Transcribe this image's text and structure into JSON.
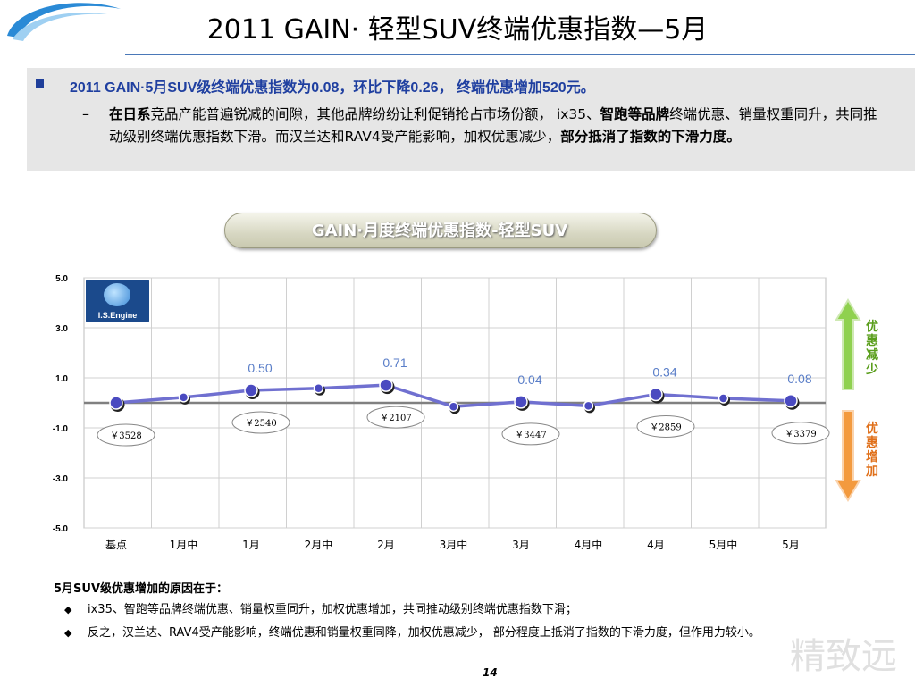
{
  "header": {
    "title": "2011 GAIN· 轻型SUV终端优惠指数—5月"
  },
  "summary": {
    "headline": "2011 GAIN·5月SUV级终端优惠指数为0.08，环比下降0.26， 终端优惠增加520元。",
    "detail_bold_1": "在日系",
    "detail_1": "竞品产能普遍锐减的间隙，其他品牌纷纷让利促销抢占市场份额， ix35、",
    "detail_bold_2": "智跑等品牌",
    "detail_2": "终端优惠、销量权重同升，共同推动级别终端优惠指数下滑。而汉兰达和RAV4受产能影响，加权优惠减少，",
    "detail_bold_3": "部分抵消了指数的下滑力度。"
  },
  "chart_title": "GAIN·月度终端优惠指数-轻型SUV",
  "logo_label": "I.S.Engine",
  "side_labels": {
    "up": [
      "优",
      "惠",
      "减",
      "少"
    ],
    "down": [
      "优",
      "惠",
      "增",
      "加"
    ]
  },
  "colors": {
    "line": "#7070d0",
    "marker": "#4a4ac0",
    "value_label": "#5a7ec8",
    "up_arrow": "#7cc242",
    "down_arrow": "#f08a2a",
    "up_text": "#5a9e1c",
    "down_text": "#e0701a"
  },
  "chart_data": {
    "type": "line",
    "categories": [
      "基点",
      "1月中",
      "1月",
      "2月中",
      "2月",
      "3月中",
      "3月",
      "4月中",
      "4月",
      "5月中",
      "5月"
    ],
    "series": [
      {
        "values": [
          0,
          0.22,
          0.5,
          0.58,
          0.71,
          -0.15,
          0.04,
          -0.12,
          0.34,
          0.18,
          0.08
        ]
      }
    ],
    "value_labels": [
      {
        "index": 2,
        "text": "0.50"
      },
      {
        "index": 4,
        "text": "0.71"
      },
      {
        "index": 6,
        "text": "0.04"
      },
      {
        "index": 8,
        "text": "0.34"
      },
      {
        "index": 10,
        "text": "0.08"
      }
    ],
    "callouts": [
      {
        "index": 0,
        "text": "￥3528"
      },
      {
        "index": 2,
        "text": "￥2540"
      },
      {
        "index": 4,
        "text": "￥2107"
      },
      {
        "index": 6,
        "text": "￥3447"
      },
      {
        "index": 8,
        "text": "￥2859"
      },
      {
        "index": 10,
        "text": "￥3379"
      }
    ],
    "yticks": [
      "5.0",
      "3.0",
      "1.0",
      "-1.0",
      "-3.0",
      "-5.0"
    ],
    "ylim": [
      -5,
      5
    ],
    "grid": true,
    "xlabel": "",
    "ylabel": ""
  },
  "notes": {
    "title": "5月SUV级优惠增加的原因在于：",
    "items": [
      "ix35、智跑等品牌终端优惠、销量权重同升，加权优惠增加，共同推动级别终端优惠指数下滑；",
      "反之，汉兰达、RAV4受产能影响，终端优惠和销量权重同降，加权优惠减少， 部分程度上抵消了指数的下滑力度，但作用力较小。"
    ]
  },
  "page_number": "14",
  "watermark": "精致远"
}
